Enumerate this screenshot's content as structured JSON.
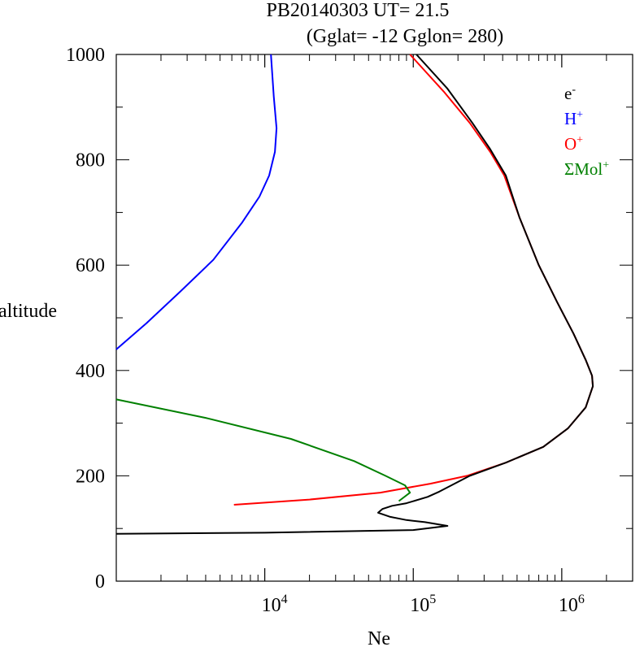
{
  "chart_data": {
    "type": "line",
    "title": "PB20140303   UT=  21.5",
    "subtitle": "(Gglat= -12   Gglon=  280)",
    "xlabel": "Ne",
    "ylabel": "altitude",
    "xscale": "log",
    "xlim": [
      1000,
      3000000
    ],
    "ylim": [
      0,
      1000
    ],
    "x_ticks": [
      {
        "value": 10000,
        "base": "10",
        "exp": "4"
      },
      {
        "value": 100000,
        "base": "10",
        "exp": "5"
      },
      {
        "value": 1000000,
        "base": "10",
        "exp": "6"
      }
    ],
    "y_ticks": [
      "0",
      "200",
      "400",
      "600",
      "800",
      "1000"
    ],
    "grid": false,
    "legend": {
      "position": "top-right",
      "entries": [
        {
          "key": "e",
          "base": "e",
          "sup": "-",
          "color": "#000000"
        },
        {
          "key": "H",
          "base": "H",
          "sup": "+",
          "color": "#0000ff"
        },
        {
          "key": "O",
          "base": "O",
          "sup": "+",
          "color": "#ff0000"
        },
        {
          "key": "Mol",
          "base": "ΣMol",
          "sup": "+",
          "color": "#008000"
        }
      ]
    },
    "series": [
      {
        "key": "H",
        "color": "#0000ff",
        "points": [
          [
            1000,
            440
          ],
          [
            1600,
            490
          ],
          [
            2700,
            550
          ],
          [
            4500,
            610
          ],
          [
            7000,
            680
          ],
          [
            9200,
            730
          ],
          [
            10700,
            770
          ],
          [
            11700,
            815
          ],
          [
            12000,
            860
          ],
          [
            11500,
            920
          ],
          [
            11000,
            1000
          ]
        ]
      },
      {
        "key": "O",
        "color": "#ff0000",
        "points": [
          [
            6200,
            145
          ],
          [
            20000,
            155
          ],
          [
            60000,
            168
          ],
          [
            130000,
            185
          ],
          [
            230000,
            200
          ],
          [
            420000,
            225
          ],
          [
            750000,
            255
          ],
          [
            1100000,
            290
          ],
          [
            1450000,
            330
          ],
          [
            1620000,
            370
          ],
          [
            1600000,
            390
          ],
          [
            1450000,
            420
          ],
          [
            1200000,
            470
          ],
          [
            930000,
            530
          ],
          [
            700000,
            600
          ],
          [
            520000,
            690
          ],
          [
            410000,
            770
          ],
          [
            330000,
            815
          ],
          [
            240000,
            870
          ],
          [
            160000,
            930
          ],
          [
            95000,
            1000
          ]
        ]
      },
      {
        "key": "Mol",
        "color": "#008000",
        "points": [
          [
            1000,
            345
          ],
          [
            4000,
            310
          ],
          [
            15000,
            270
          ],
          [
            40000,
            228
          ],
          [
            65000,
            200
          ],
          [
            88000,
            182
          ],
          [
            95000,
            168
          ],
          [
            80000,
            152
          ]
        ]
      },
      {
        "key": "e",
        "color": "#000000",
        "points": [
          [
            1000,
            90
          ],
          [
            10000,
            92
          ],
          [
            100000,
            97
          ],
          [
            170000,
            105
          ],
          [
            120000,
            112
          ],
          [
            90000,
            116
          ],
          [
            70000,
            122
          ],
          [
            58000,
            130
          ],
          [
            62000,
            137
          ],
          [
            72000,
            143
          ],
          [
            90000,
            148
          ],
          [
            125000,
            160
          ],
          [
            150000,
            170
          ],
          [
            240000,
            200
          ],
          [
            420000,
            225
          ],
          [
            750000,
            255
          ],
          [
            1100000,
            290
          ],
          [
            1450000,
            330
          ],
          [
            1620000,
            370
          ],
          [
            1600000,
            390
          ],
          [
            1450000,
            420
          ],
          [
            1200000,
            470
          ],
          [
            930000,
            530
          ],
          [
            700000,
            600
          ],
          [
            520000,
            690
          ],
          [
            420000,
            770
          ],
          [
            330000,
            820
          ],
          [
            250000,
            870
          ],
          [
            170000,
            935
          ],
          [
            105000,
            1000
          ]
        ]
      }
    ]
  }
}
